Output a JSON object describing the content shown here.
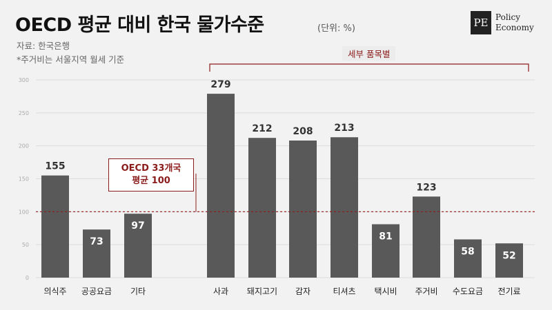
{
  "header": {
    "title": "OECD 평균 대비 한국 물가수준",
    "unit": "(단위: %)",
    "source": "자료: 한국은행",
    "note": "*주거비는 서울지역 월세 기준"
  },
  "logo": {
    "mark": "PE",
    "line1": "Policy",
    "line2": "Economy"
  },
  "annotations": {
    "detail_label": "세부 품목별",
    "reference_line1": "OECD 33개국",
    "reference_line2": "평균 100"
  },
  "colors": {
    "bar": "#595959",
    "accent": "#8b1a1a",
    "background": "#f3f2f2"
  },
  "chart_data": {
    "type": "bar",
    "title": "OECD 평균 대비 한국 물가수준",
    "xlabel": "",
    "ylabel": "",
    "ylim": [
      0,
      300
    ],
    "yticks": [
      0,
      50,
      100,
      150,
      200,
      250,
      300
    ],
    "reference_value": 100,
    "categories": [
      "의식주",
      "공공요금",
      "기타",
      "사과",
      "돼지고기",
      "감자",
      "티셔츠",
      "택시비",
      "주거비",
      "수도요금",
      "전기료"
    ],
    "values": [
      155,
      73,
      97,
      279,
      212,
      208,
      213,
      81,
      123,
      58,
      52
    ]
  }
}
